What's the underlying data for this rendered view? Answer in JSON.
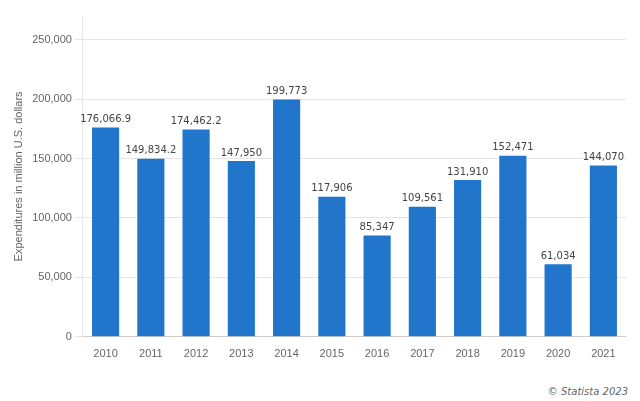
{
  "chart_data": {
    "type": "bar",
    "categories": [
      "2010",
      "2011",
      "2012",
      "2013",
      "2014",
      "2015",
      "2016",
      "2017",
      "2018",
      "2019",
      "2020",
      "2021"
    ],
    "values": [
      176066.9,
      149834.2,
      174462.2,
      147950,
      199773,
      117906,
      85347,
      109561,
      131910,
      152471,
      61034,
      144070
    ],
    "value_labels": [
      "176,066.9",
      "149,834.2",
      "174,462.2",
      "147,950",
      "199,773",
      "117,906",
      "85,347",
      "109,561",
      "131,910",
      "152,471",
      "61,034",
      "144,070"
    ],
    "data_labels": true,
    "color": "#2176cc",
    "ylabel": "Expenditures in million U.S. dollars",
    "ylim": [
      0,
      270000
    ],
    "yticks": [
      0,
      {
        "value": 50000,
        "label": "50,000"
      },
      {
        "value": 100000,
        "label": "100,000"
      },
      {
        "value": 150000,
        "label": "150,000"
      },
      {
        "value": 200000,
        "label": "200,000"
      },
      {
        "value": 250000,
        "label": "250,000"
      }
    ],
    "grid": true,
    "annotation": "© Statista 2023"
  }
}
